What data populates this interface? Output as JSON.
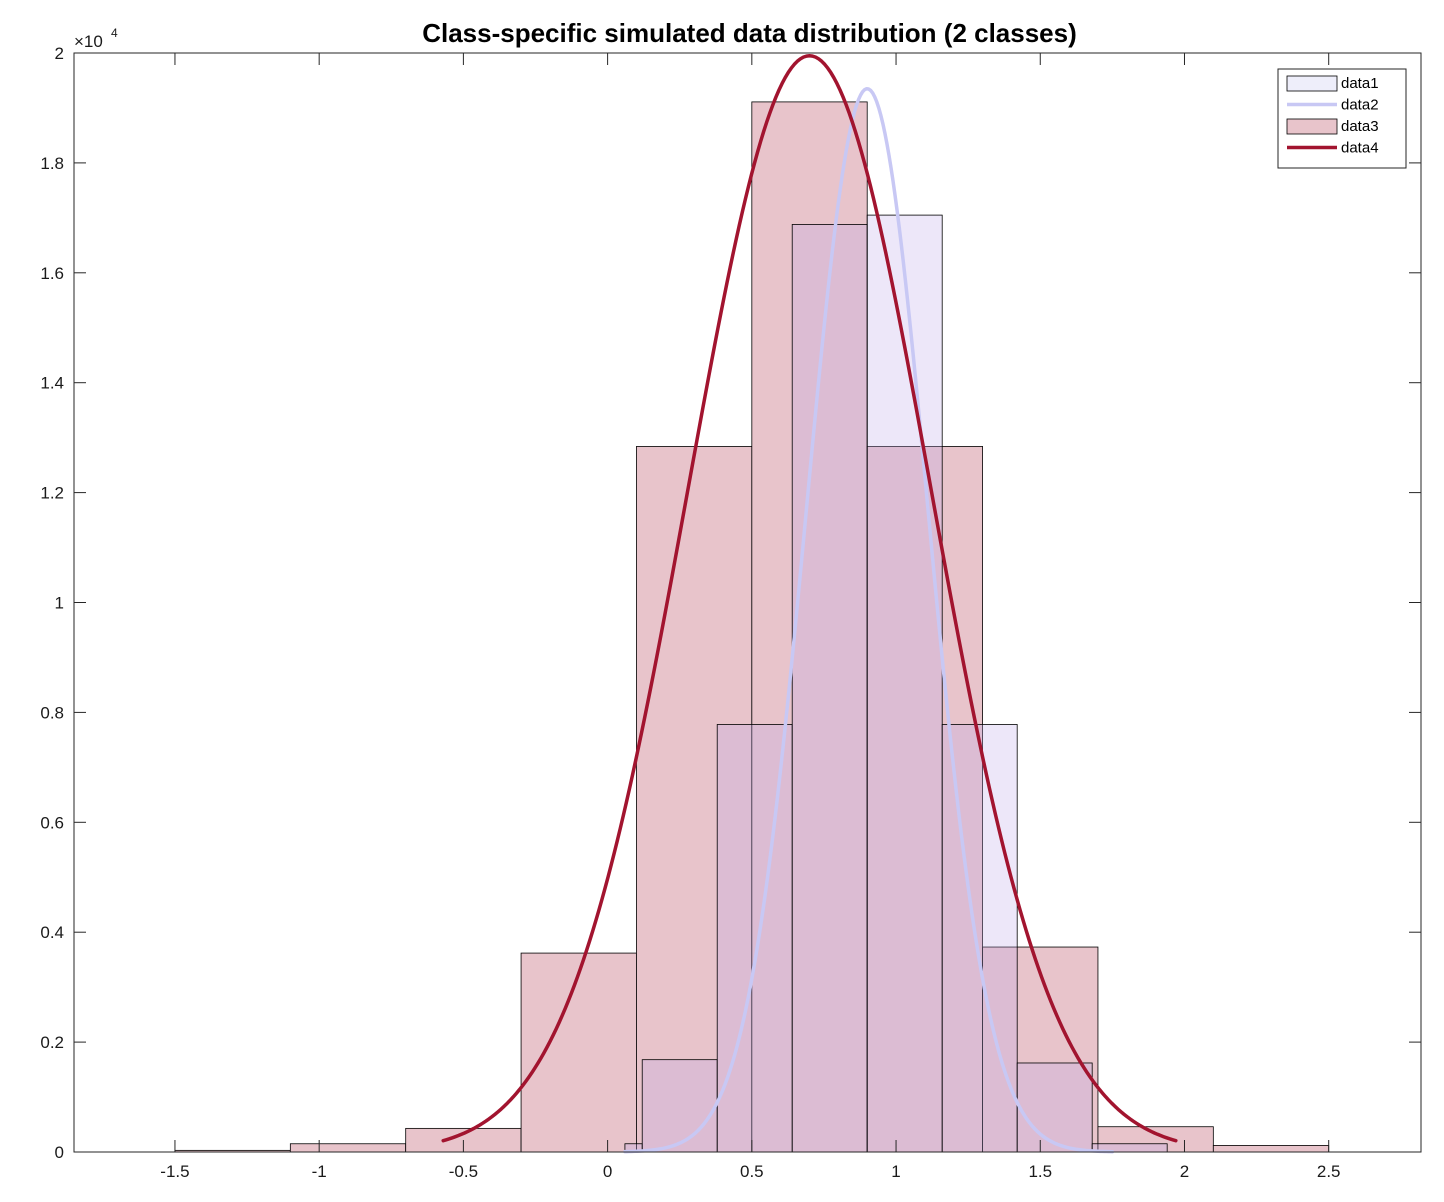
{
  "chart_data": {
    "type": "bar",
    "title": "Class-specific simulated data distribution (2 classes)",
    "xlabel": "",
    "ylabel": "",
    "xlim": [
      -1.85,
      2.82
    ],
    "ylim": [
      0,
      20000
    ],
    "y_exponent_label": "×10",
    "y_exponent_power": "4",
    "x_ticks": [
      -1.5,
      -1,
      -0.5,
      0,
      0.5,
      1,
      1.5,
      2,
      2.5
    ],
    "x_tick_labels": [
      "-1.5",
      "-1",
      "-0.5",
      "0",
      "0.5",
      "1",
      "1.5",
      "2",
      "2.5"
    ],
    "y_ticks": [
      0,
      2000,
      4000,
      6000,
      8000,
      10000,
      12000,
      14000,
      16000,
      18000,
      20000
    ],
    "y_tick_labels": [
      "0",
      "0.2",
      "0.4",
      "0.6",
      "0.8",
      "1",
      "1.2",
      "1.4",
      "1.6",
      "1.8",
      "2"
    ],
    "grid": false,
    "legend_position": "top-right",
    "colors": {
      "data1_fill": "#eeeefa",
      "data2_line": "#c8c8f4",
      "data3_fill": "#e8c4cb",
      "data4_line": "#a2142f",
      "overlap_fill": "#ddb9cc",
      "bar_edge": "#000000"
    },
    "series": [
      {
        "name": "data1",
        "kind": "histogram",
        "bin_edges": [
          -1.5,
          -1.24,
          -0.98,
          -0.72,
          -0.46,
          -0.2,
          0.06,
          0.12,
          0.38,
          0.64,
          0.9,
          1.16,
          1.42,
          1.68,
          1.94,
          2.2,
          2.46
        ],
        "counts": [
          0,
          0,
          0,
          0,
          0,
          0,
          150,
          1680,
          7780,
          16880,
          17050,
          7780,
          1620,
          150,
          0,
          0
        ]
      },
      {
        "name": "data2",
        "kind": "line",
        "mean": 0.9,
        "std": 0.21,
        "peak": 19350,
        "x_range": [
          0.06,
          1.75
        ]
      },
      {
        "name": "data3",
        "kind": "histogram",
        "bin_edges": [
          -1.5,
          -1.1,
          -0.7,
          -0.3,
          0.1,
          0.5,
          0.9,
          1.3,
          1.7,
          2.1,
          2.5
        ],
        "counts": [
          30,
          150,
          430,
          3620,
          12840,
          19110,
          12840,
          3730,
          460,
          120
        ]
      },
      {
        "name": "data4",
        "kind": "line",
        "mean": 0.7,
        "std": 0.42,
        "peak": 19950,
        "x_range": [
          -0.57,
          1.97
        ]
      }
    ]
  }
}
